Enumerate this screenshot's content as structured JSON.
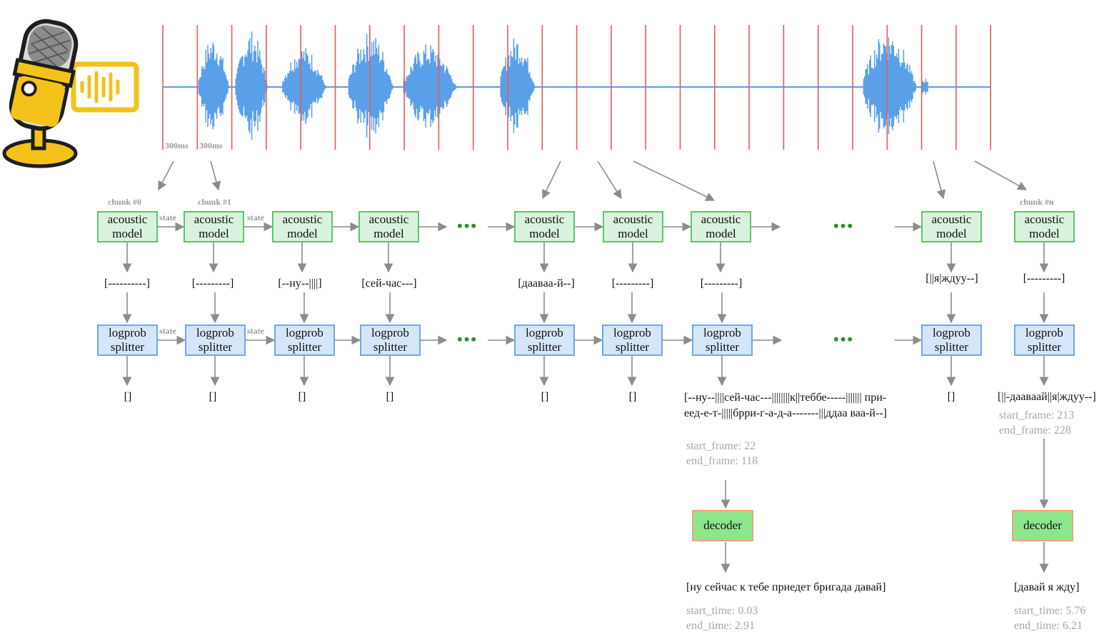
{
  "colors": {
    "wave": "#5aa0e8",
    "boundary": "#e85a5a",
    "arrow": "#8c8c8c",
    "am_fill": "#d9f2dd",
    "am_border": "#5cc76c",
    "lp_fill": "#d6e6fa",
    "lp_border": "#6fa8ea",
    "decoder_fill": "#8ee68a",
    "decoder_border": "#f0a27a",
    "dots": "#2e8f2e"
  },
  "icon": {
    "name": "microphone-icon",
    "accent": "#f3c21b"
  },
  "waveform": {
    "segment_labels": [
      "300ms",
      "300ms"
    ]
  },
  "chunk_labels": {
    "first": "chunk #0",
    "second": "chunk #1",
    "last": "chunk #n"
  },
  "state_label": "state",
  "acoustic_label": "acoustic\nmodel",
  "splitter_label": "logprob\nsplitter",
  "columns": [
    {
      "am_out": "[----------]",
      "lp_out": "[]"
    },
    {
      "am_out": "[---------]",
      "lp_out": "[]"
    },
    {
      "am_out": "[--ну--||||]",
      "lp_out": "[]"
    },
    {
      "am_out": "[сей-час---]",
      "lp_out": "[]"
    },
    {
      "am_out": "[даавaa-й--]",
      "lp_out": "[]"
    },
    {
      "am_out": "[---------]",
      "lp_out": "[]"
    },
    {
      "am_out": "[---------]",
      "lp_out": ""
    },
    {
      "am_out": "[||я|ждуу--]",
      "lp_out": "[]"
    },
    {
      "am_out": "[---------]",
      "lp_out": ""
    }
  ],
  "ellipsis": "•••",
  "segment1": {
    "text": "[--ну--||||сей-час---||||||||к||теббе-----||||||| при-еед-е-т-|||||брри-г-а-д-а-------|||ддаа ваа-й--]",
    "start_frame": "start_frame: 22",
    "end_frame": "end_frame: 118",
    "decoder": "decoder",
    "result": "[ну сейчас к тебе приедет бригада давай]",
    "start_time": "start_time: 0.03",
    "end_time": "end_time: 2.91"
  },
  "segment2": {
    "text": "[||-даавaaй||я|ждуу--]",
    "start_frame": "start_frame: 213",
    "end_frame": "end_frame: 228",
    "decoder": "decoder",
    "result": "[давай я жду]",
    "start_time": "start_time: 5.76",
    "end_time": "end_time: 6.21"
  }
}
